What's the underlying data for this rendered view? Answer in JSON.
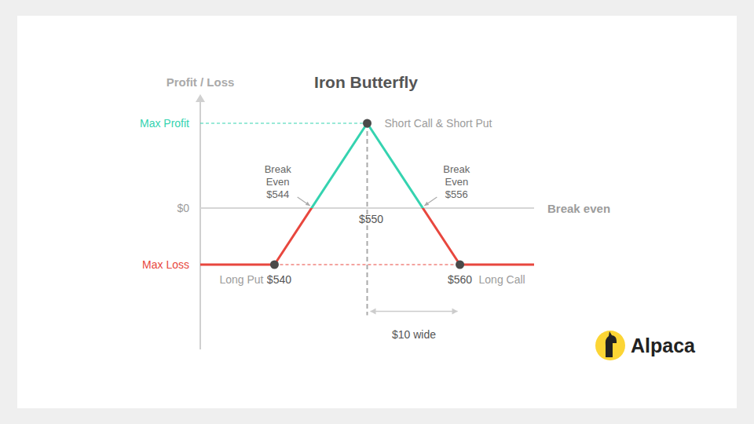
{
  "chart_data": {
    "type": "line",
    "title": "Iron Butterfly",
    "y_label": "Profit / Loss",
    "x": [
      532,
      540,
      550,
      560,
      568
    ],
    "series": [
      {
        "values": [
          -4,
          -4,
          6,
          -4,
          -4
        ],
        "colors": [
          "#35d3b0",
          "#e8473e"
        ],
        "line_style": "solid"
      }
    ],
    "xlim": [
      532,
      568
    ],
    "ylim": [
      -10,
      8
    ],
    "yticks": [
      {
        "value": 6,
        "label": "Max Profit"
      },
      {
        "value": 0,
        "label": "$0"
      },
      {
        "value": -4,
        "label": "Max Loss"
      }
    ],
    "tick_labels": "y",
    "grid": false,
    "zero_label": "Break even",
    "points": [
      {
        "label": "Short Call & Short Put",
        "x": 550,
        "y": 6
      },
      {
        "label": "Long Put",
        "value_label": "$540",
        "x": 540,
        "y": -4
      },
      {
        "label": "Long Call",
        "value_label": "$560",
        "x": 560,
        "y": -4
      }
    ],
    "break_evens": [
      {
        "text": [
          "Break",
          "Even",
          "$544"
        ],
        "x": 544,
        "y": 0
      },
      {
        "text": [
          "Break",
          "Even",
          "$556"
        ],
        "x": 556,
        "y": 0
      }
    ],
    "strike_label": {
      "text": "$550",
      "x": 550,
      "y": 0
    },
    "width_marker": {
      "text": "$10 wide",
      "x": [
        550,
        560
      ],
      "y": -7.3
    },
    "logo": "Alpaca"
  }
}
